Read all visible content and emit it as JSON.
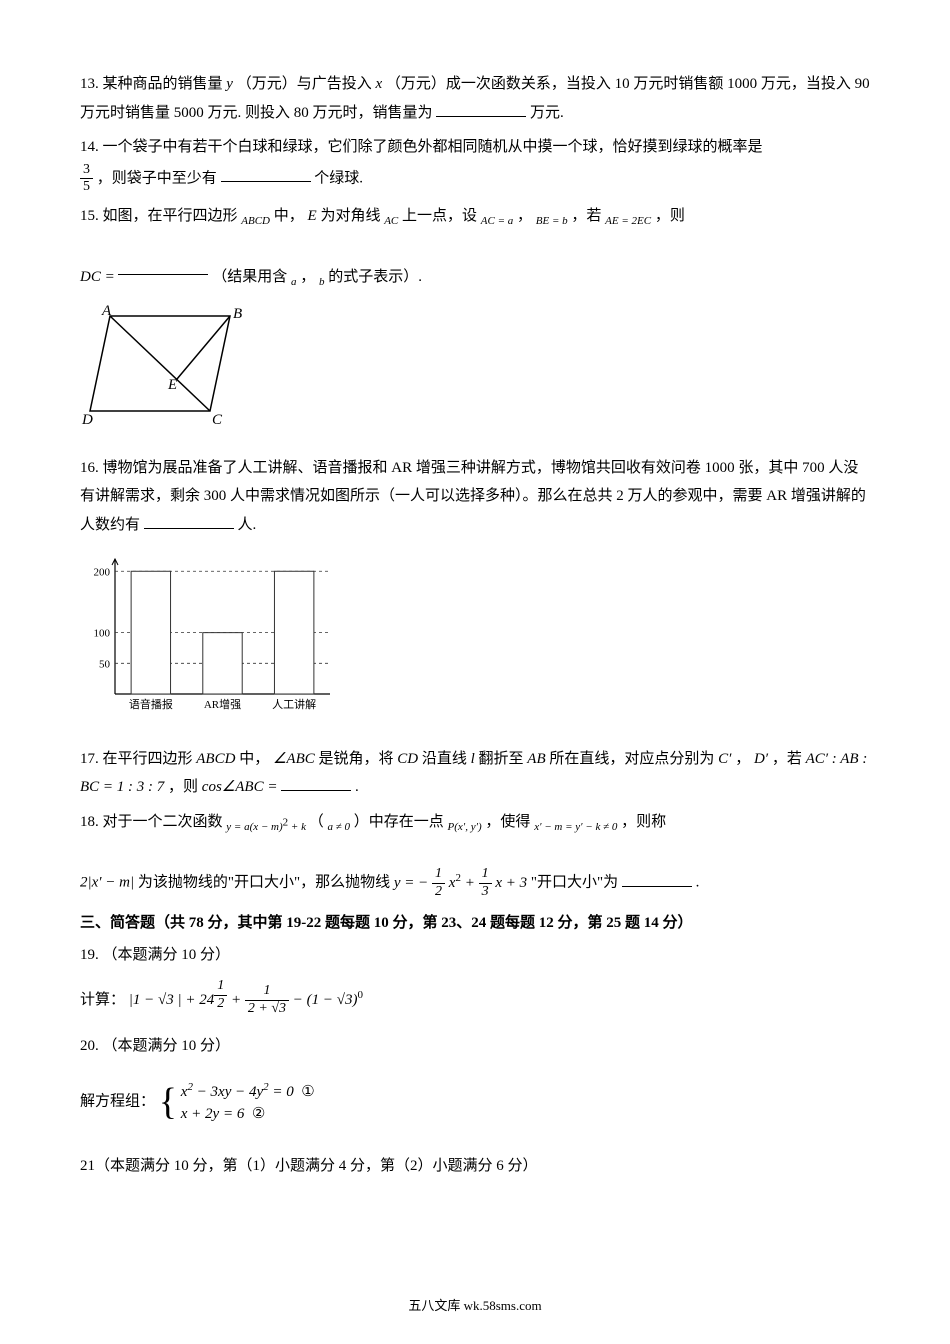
{
  "q13": {
    "text_a": "13. 某种商品的销售量 ",
    "var_y": "y",
    "text_b": "（万元）与广告投入 ",
    "var_x": "x",
    "text_c": "（万元）成一次函数关系，当投入 10 万元时销售额 1000 万元，当投入 90 万元时销售量 5000 万元. 则投入 80 万元时，销售量为",
    "text_d": "万元."
  },
  "q14": {
    "text_a": "14. 一个袋子中有若干个白球和绿球，它们除了颜色外都相同随机从中摸一个球，恰好摸到绿球的概率是",
    "frac_num": "3",
    "frac_den": "5",
    "text_b": "，则袋子中至少有",
    "text_c": "个绿球."
  },
  "q15": {
    "text_a": "15. 如图，在平行四边形",
    "abcd": "ABCD",
    "text_b": "中，",
    "e": "E",
    "text_c": "为对角线",
    "ac": "AC",
    "text_d": "上一点，设",
    "eq1": "AC = a",
    "text_e": "，",
    "eq2": "BE = b",
    "text_f": "，若",
    "eq3": "AE = 2EC",
    "text_g": "，则",
    "dc": "DC =",
    "text_h": "（结果用含",
    "a": "a",
    "text_i": "，",
    "b": "b",
    "text_j": "的式子表示）.",
    "fig": {
      "labels": {
        "A": "A",
        "B": "B",
        "C": "C",
        "D": "D",
        "E": "E"
      },
      "stroke": "#000000"
    }
  },
  "q16": {
    "text_a": "16. 博物馆为展品准备了人工讲解、语音播报和 AR 增强三种讲解方式，博物馆共回收有效问卷 1000 张，其中 700 人没有讲解需求，剩余 300 人中需求情况如图所示（一人可以选择多种）。那么在总共 2 万人的参观中，需要 AR 增强讲解的人数约有",
    "text_b": "人.",
    "chart": {
      "type": "bar",
      "categories": [
        "语音播报",
        "AR增强",
        "人工讲解"
      ],
      "values": [
        200,
        100,
        200
      ],
      "ylabels": [
        "50",
        "100",
        "200"
      ],
      "ypositions": [
        50,
        100,
        200
      ],
      "ymax": 220,
      "bar_color": "#ffffff",
      "border_color": "#333333",
      "axis_color": "#000000",
      "grid_dash": "3,3"
    }
  },
  "q17": {
    "text_a": "17. 在平行四边形 ",
    "abcd": "ABCD",
    "text_b": " 中，",
    "ang": "∠ABC",
    "text_c": " 是锐角，将 ",
    "cd": "CD",
    "text_d": " 沿直线 ",
    "l": "l",
    "text_e": " 翻折至 ",
    "ab": "AB",
    "text_f": " 所在直线，对应点分别为 ",
    "cp": "C′",
    "text_g": "，",
    "dp": "D′",
    "text_h": "，若 ",
    "ratio": "AC′ : AB : BC = 1 : 3 : 7",
    "text_i": "，则 ",
    "cos": "cos∠ABC =",
    "text_j": "."
  },
  "q18": {
    "text_a": "18. 对于一个二次函数",
    "eq1_pre": "y = a(x − m)",
    "eq1_exp": "2",
    "eq1_post": " + k",
    "text_b": "（",
    "cond": "a ≠ 0",
    "text_c": "）中存在一点",
    "pt": "P(x′, y′)",
    "text_d": "，使得",
    "eq2": "x′ − m = y′ − k ≠ 0",
    "text_e": "，则称",
    "eq3": "2|x′ − m|",
    "text_f": "为该抛物线的\"开口大小\"，那么抛物线",
    "eq4_pre": "y = −",
    "f1n": "1",
    "f1d": "2",
    "eq4_mid1": "x",
    "eq4_exp": "2",
    "eq4_mid2": " + ",
    "f2n": "1",
    "f2d": "3",
    "eq4_mid3": "x + 3",
    "text_g": "\"开口大小\"为",
    "text_h": "."
  },
  "section3": "三、简答题（共 78 分，其中第 19-22 题每题 10 分，第 23、24 题每题 12 分，第 25 题 14 分）",
  "q19": {
    "header": "19. （本题满分 10 分）",
    "label": "计算：",
    "part1": "|1 − ",
    "sqrt3": "√3",
    "part2": " | + 24",
    "exp_n": "1",
    "exp_d": "2",
    "part3": " + ",
    "f_num": "1",
    "f_den_a": "2 + ",
    "f_den_b": "√3",
    "part4": " − (1 − ",
    "part5": ")",
    "exp0": "0"
  },
  "q20": {
    "header": "20. （本题满分 10 分）",
    "label": "解方程组：",
    "eq1_a": "x",
    "eq1_b": " − 3xy − 4y",
    "eq1_c": " = 0",
    "eq2": "x + 2y = 6",
    "m1": "①",
    "m2": "②"
  },
  "q21": {
    "header": "21（本题满分 10 分，第（1）小题满分 4 分，第（2）小题满分 6 分）"
  },
  "footer": "五八文库 wk.58sms.com"
}
